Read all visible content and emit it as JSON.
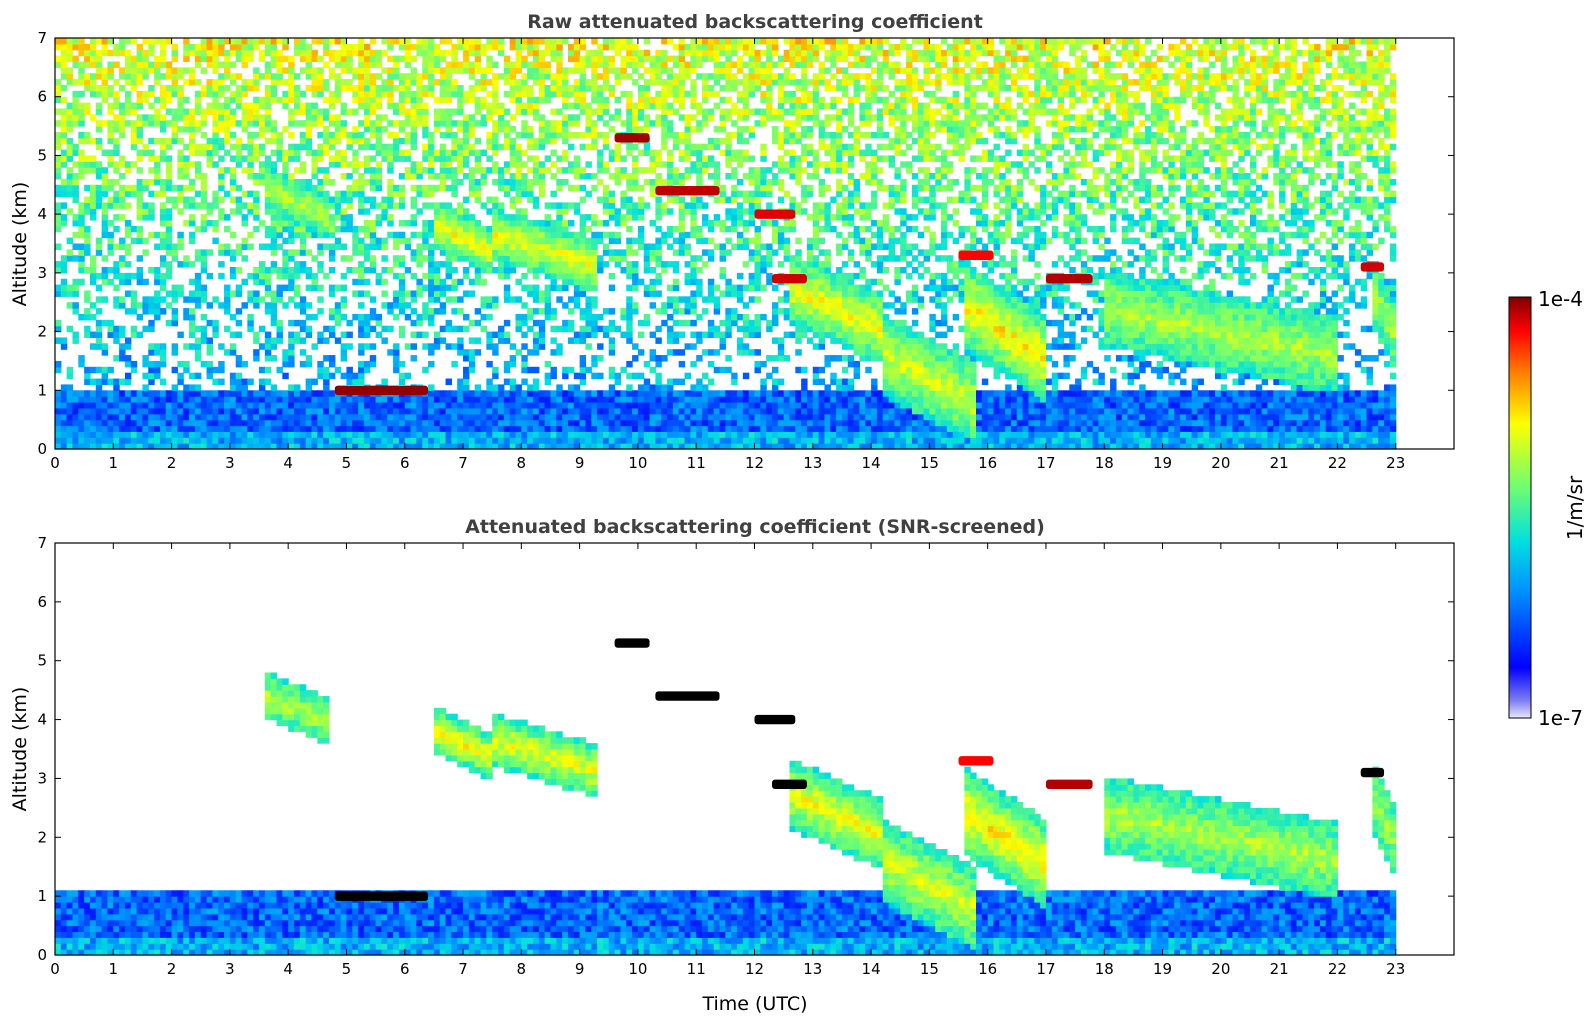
{
  "chart_data": [
    {
      "type": "heatmap",
      "title": "Raw attenuated backscattering coefficient",
      "xlabel": "",
      "ylabel": "Altitude (km)",
      "xlim": [
        0,
        24
      ],
      "ylim": [
        0,
        7
      ],
      "x_ticks": [
        "0",
        "1",
        "2",
        "3",
        "4",
        "5",
        "6",
        "7",
        "8",
        "9",
        "10",
        "11",
        "12",
        "13",
        "14",
        "15",
        "16",
        "17",
        "18",
        "19",
        "20",
        "21",
        "22",
        "23"
      ],
      "y_ticks": [
        "0",
        "1",
        "2",
        "3",
        "4",
        "5",
        "6",
        "7"
      ],
      "data_end_time": 23,
      "screened": false,
      "boundary_layer_top_km": 1.0,
      "features": [
        {
          "t0": 3.6,
          "t1": 4.7,
          "alt": 4.2,
          "depth": 0.8,
          "level": 0.62
        },
        {
          "t0": 6.5,
          "t1": 7.5,
          "alt": 3.6,
          "depth": 0.8,
          "level": 0.7
        },
        {
          "t0": 7.5,
          "t1": 9.3,
          "alt": 3.4,
          "depth": 0.9,
          "level": 0.68
        },
        {
          "t0": 12.6,
          "t1": 14.2,
          "alt": 2.4,
          "depth": 1.2,
          "level": 0.7
        },
        {
          "t0": 14.2,
          "t1": 15.8,
          "alt": 1.2,
          "depth": 1.4,
          "level": 0.66
        },
        {
          "t0": 15.6,
          "t1": 17.0,
          "alt": 2.0,
          "depth": 1.5,
          "level": 0.72
        },
        {
          "t0": 18.0,
          "t1": 22.0,
          "alt": 2.0,
          "depth": 1.3,
          "level": 0.62
        },
        {
          "t0": 22.6,
          "t1": 23.0,
          "alt": 2.3,
          "depth": 1.2,
          "level": 0.6
        }
      ],
      "thin_layers": [
        {
          "t0": 9.6,
          "t1": 10.2,
          "alt": 5.3,
          "level": 0.98
        },
        {
          "t0": 10.3,
          "t1": 11.4,
          "alt": 4.4,
          "level": 0.96
        },
        {
          "t0": 12.0,
          "t1": 12.7,
          "alt": 4.0,
          "level": 0.94
        },
        {
          "t0": 12.3,
          "t1": 12.9,
          "alt": 2.9,
          "level": 0.95
        },
        {
          "t0": 15.5,
          "t1": 16.1,
          "alt": 3.3,
          "level": 0.92
        },
        {
          "t0": 17.0,
          "t1": 17.8,
          "alt": 2.9,
          "level": 0.97
        },
        {
          "t0": 22.4,
          "t1": 22.8,
          "alt": 3.1,
          "level": 0.95
        },
        {
          "t0": 4.8,
          "t1": 6.4,
          "alt": 1.0,
          "level": 0.99
        }
      ]
    },
    {
      "type": "heatmap",
      "title": "Attenuated backscattering coefficient (SNR-screened)",
      "xlabel": "Time (UTC)",
      "ylabel": "Altitude (km)",
      "xlim": [
        0,
        24
      ],
      "ylim": [
        0,
        7
      ],
      "x_ticks": [
        "0",
        "1",
        "2",
        "3",
        "4",
        "5",
        "6",
        "7",
        "8",
        "9",
        "10",
        "11",
        "12",
        "13",
        "14",
        "15",
        "16",
        "17",
        "18",
        "19",
        "20",
        "21",
        "22",
        "23"
      ],
      "y_ticks": [
        "0",
        "1",
        "2",
        "3",
        "4",
        "5",
        "6",
        "7"
      ],
      "data_end_time": 23,
      "screened": true,
      "boundary_layer_top_km": 1.1,
      "features": [
        {
          "t0": 3.6,
          "t1": 4.7,
          "alt": 4.2,
          "depth": 0.8,
          "level": 0.62
        },
        {
          "t0": 6.5,
          "t1": 7.5,
          "alt": 3.6,
          "depth": 0.8,
          "level": 0.7
        },
        {
          "t0": 7.5,
          "t1": 9.3,
          "alt": 3.4,
          "depth": 0.9,
          "level": 0.68
        },
        {
          "t0": 12.6,
          "t1": 14.2,
          "alt": 2.4,
          "depth": 1.2,
          "level": 0.7
        },
        {
          "t0": 14.2,
          "t1": 15.8,
          "alt": 1.2,
          "depth": 1.4,
          "level": 0.66
        },
        {
          "t0": 15.6,
          "t1": 17.0,
          "alt": 2.0,
          "depth": 1.5,
          "level": 0.72
        },
        {
          "t0": 18.0,
          "t1": 22.0,
          "alt": 2.0,
          "depth": 1.3,
          "level": 0.62
        },
        {
          "t0": 22.6,
          "t1": 23.0,
          "alt": 2.3,
          "depth": 1.2,
          "level": 0.6
        }
      ],
      "thin_layers": [
        {
          "t0": 9.6,
          "t1": 10.2,
          "alt": 5.3,
          "level": 1.0
        },
        {
          "t0": 10.3,
          "t1": 11.4,
          "alt": 4.4,
          "level": 1.0
        },
        {
          "t0": 12.0,
          "t1": 12.7,
          "alt": 4.0,
          "level": 1.0
        },
        {
          "t0": 12.3,
          "t1": 12.9,
          "alt": 2.9,
          "level": 1.0
        },
        {
          "t0": 15.5,
          "t1": 16.1,
          "alt": 3.3,
          "level": 0.92
        },
        {
          "t0": 17.0,
          "t1": 17.8,
          "alt": 2.9,
          "level": 0.97
        },
        {
          "t0": 22.4,
          "t1": 22.8,
          "alt": 3.1,
          "level": 1.0
        },
        {
          "t0": 4.8,
          "t1": 6.4,
          "alt": 1.0,
          "level": 1.0
        }
      ]
    }
  ],
  "colorbar": {
    "max_label": "1e-4",
    "min_label": "1e-7",
    "unit_label": "1/m/sr",
    "scale": "log"
  }
}
